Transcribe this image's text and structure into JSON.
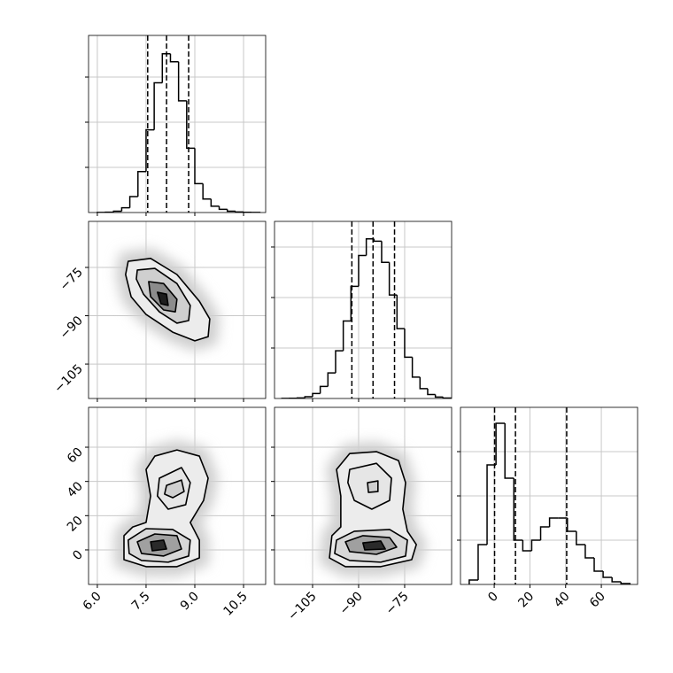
{
  "chart_data": [
    {
      "type": "histogram",
      "color": "#000000",
      "grid": true,
      "show_xticklabels": false,
      "show_yticklabels": false,
      "bins": [
        6,
        6.25,
        6.5,
        6.75,
        7,
        7.25,
        7.5,
        7.75,
        8,
        8.25,
        8.5,
        8.75,
        9,
        9.25,
        9.5,
        9.75,
        10,
        10.25,
        10.5,
        10.75,
        11
      ],
      "values": [
        1,
        4,
        15,
        53,
        176,
        454,
        916,
        1437,
        1758,
        1669,
        1237,
        712,
        320,
        150,
        70,
        35,
        15,
        6,
        2,
        1
      ],
      "quantiles": [
        7.55,
        8.13,
        8.81
      ],
      "xlim": [
        5.73,
        11.18
      ],
      "ylim": [
        0,
        1961
      ],
      "xticks": [
        6,
        7.5,
        9,
        10.5
      ],
      "yticks": [
        500,
        1000,
        1500
      ]
    },
    {
      "type": "contour",
      "grid": true,
      "show_xticklabels": false,
      "show_yticklabels": true,
      "xlim": [
        5.73,
        11.18
      ],
      "ylim": [
        -115.7,
        -60.7
      ],
      "xticks": [
        6,
        7.5,
        9,
        10.5
      ],
      "yticks": [
        {
          "value": -75,
          "label": "−75"
        },
        {
          "value": -90,
          "label": "−90"
        },
        {
          "value": -105,
          "label": "−105"
        }
      ],
      "contours": [
        {
          "fill": "#ececec",
          "x": [
            6.95,
            7.64,
            8.45,
            9.14,
            9.46,
            9.41,
            9.0,
            8.32,
            7.5,
            7.04,
            6.87
          ],
          "y": [
            -73.1,
            -72.2,
            -77.2,
            -85.5,
            -91.0,
            -96.5,
            -97.8,
            -95.1,
            -89.6,
            -84.1,
            -77.2
          ]
        },
        {
          "fill": "#cfcfcf",
          "x": [
            7.23,
            7.77,
            8.45,
            8.86,
            8.81,
            8.45,
            7.91,
            7.42,
            7.2
          ],
          "y": [
            -75.8,
            -75.3,
            -80.0,
            -86.8,
            -91.5,
            -92.3,
            -88.8,
            -83.3,
            -78.6
          ]
        },
        {
          "fill": "#8c8c8c",
          "x": [
            7.58,
            8.04,
            8.45,
            8.4,
            8.04,
            7.64
          ],
          "y": [
            -79.4,
            -80.0,
            -84.9,
            -88.8,
            -88.2,
            -84.1
          ]
        },
        {
          "fill": "#1e1e1e",
          "x": [
            7.85,
            8.13,
            8.18,
            7.96
          ],
          "y": [
            -82.7,
            -83.3,
            -86.8,
            -86.3
          ]
        }
      ]
    },
    {
      "type": "histogram",
      "color": "#000000",
      "grid": true,
      "show_xticklabels": false,
      "show_yticklabels": false,
      "bins": [
        -115,
        -112.5,
        -110,
        -107.5,
        -105,
        -102.5,
        -100,
        -97.5,
        -95,
        -92.5,
        -90,
        -87.5,
        -85,
        -82.5,
        -80,
        -77.5,
        -75,
        -72.5,
        -70,
        -67.5,
        -65,
        -62.5,
        -60
      ],
      "values": [
        1,
        2,
        6,
        18,
        49,
        119,
        253,
        473,
        767,
        1111,
        1416,
        1581,
        1558,
        1348,
        1025,
        692,
        409,
        212,
        98,
        40,
        14,
        4
      ],
      "quantiles": [
        -92.2,
        -85.3,
        -78.3
      ],
      "xlim": [
        -117.4,
        -59.7
      ],
      "ylim": [
        0,
        1754
      ],
      "xticks": [
        -105,
        -90,
        -75
      ],
      "yticks": [
        500,
        1000,
        1500
      ]
    },
    {
      "type": "contour",
      "grid": true,
      "show_xticklabels": true,
      "show_yticklabels": true,
      "xlim": [
        5.73,
        11.18
      ],
      "ylim": [
        -20.2,
        83.3
      ],
      "xticks": [
        {
          "value": 6,
          "label": "6.0"
        },
        {
          "value": 7.5,
          "label": "7.5"
        },
        {
          "value": 9,
          "label": "9.0"
        },
        {
          "value": 10.5,
          "label": "10.5"
        }
      ],
      "yticks": [
        60,
        40,
        20,
        0
      ],
      "contours": [
        {
          "fill": "#ececec",
          "x": [
            6.82,
            7.09,
            7.5,
            7.64,
            7.5,
            7.77,
            8.45,
            9.14,
            9.41,
            9.27,
            8.86,
            9.14,
            9.14,
            8.45,
            7.5,
            6.82
          ],
          "y": [
            8.3,
            13.4,
            16.0,
            31.5,
            47.0,
            54.8,
            58.4,
            54.8,
            41.9,
            28.9,
            16.0,
            5.7,
            -4.7,
            -9.8,
            -9.8,
            -5.7
          ]
        },
        {
          "fill": "#d8d8d8",
          "x": [
            6.95,
            7.5,
            8.32,
            8.86,
            8.81,
            8.18,
            7.36,
            6.98
          ],
          "y": [
            5.7,
            12.4,
            11.9,
            5.7,
            -3.6,
            -7.2,
            -6.2,
            -2.1
          ]
        },
        {
          "fill": "#a0a0a0",
          "x": [
            7.23,
            7.77,
            8.45,
            8.59,
            8.04,
            7.36
          ],
          "y": [
            4.7,
            9.3,
            8.3,
            0.5,
            -3.6,
            -2.1
          ]
        },
        {
          "fill": "#e6e6e6",
          "x": [
            7.91,
            8.59,
            8.86,
            8.72,
            8.18,
            7.85
          ],
          "y": [
            41.9,
            48.1,
            39.3,
            26.4,
            23.8,
            31.5
          ]
        },
        {
          "fill": "#d0d0d0",
          "x": [
            8.13,
            8.59,
            8.67,
            8.32,
            8.07
          ],
          "y": [
            37.7,
            40.8,
            34.1,
            30.5,
            32.6
          ]
        },
        {
          "fill": "#2a2a2a",
          "x": [
            7.64,
            8.04,
            8.13,
            7.69
          ],
          "y": [
            4.7,
            5.7,
            0.5,
            -0.5
          ]
        }
      ]
    },
    {
      "type": "contour",
      "grid": true,
      "show_xticklabels": true,
      "show_yticklabels": false,
      "xlim": [
        -117.4,
        -59.7
      ],
      "ylim": [
        -20.2,
        83.3
      ],
      "xticks": [
        {
          "value": -105,
          "label": "−105"
        },
        {
          "value": -90,
          "label": "−90"
        },
        {
          "value": -75,
          "label": "−75"
        }
      ],
      "yticks": [
        60,
        40,
        20,
        0
      ],
      "contours": [
        {
          "fill": "#ececec",
          "x": [
            -98.7,
            -95.8,
            -95.8,
            -97.2,
            -92.9,
            -84.2,
            -77.0,
            -74.7,
            -75.6,
            -74.1,
            -71.2,
            -72.7,
            -82.8,
            -94.3,
            -99.5
          ],
          "y": [
            8.3,
            13.4,
            31.5,
            47.0,
            56.3,
            57.4,
            52.2,
            39.3,
            23.8,
            10.9,
            3.1,
            -5.7,
            -9.8,
            -9.8,
            -4.7
          ]
        },
        {
          "fill": "#e6e6e6",
          "x": [
            -92.9,
            -84.2,
            -79.3,
            -79.9,
            -85.7,
            -91.4,
            -93.5
          ],
          "y": [
            47.0,
            50.6,
            41.9,
            28.9,
            23.8,
            28.9,
            39.3
          ]
        },
        {
          "fill": "#d8d8d8",
          "x": [
            -97.2,
            -91.4,
            -79.9,
            -74.1,
            -74.7,
            -82.8,
            -92.9,
            -97.8
          ],
          "y": [
            5.7,
            10.9,
            11.9,
            5.7,
            -3.6,
            -7.2,
            -6.2,
            -2.1
          ]
        },
        {
          "fill": "#a0a0a0",
          "x": [
            -94.3,
            -88.6,
            -79.9,
            -77.6,
            -84.2,
            -92.9
          ],
          "y": [
            4.7,
            8.3,
            7.2,
            1.6,
            -2.6,
            -1.0
          ]
        },
        {
          "fill": "#2a2a2a",
          "x": [
            -88.6,
            -82.8,
            -81.3,
            -88.0
          ],
          "y": [
            4.1,
            5.2,
            0.5,
            0
          ]
        },
        {
          "fill": "#d0d0d0",
          "x": [
            -87.1,
            -83.7,
            -83.7,
            -86.8
          ],
          "y": [
            39.3,
            40.3,
            34.1,
            33.6
          ]
        }
      ]
    },
    {
      "type": "histogram",
      "color": "#000000",
      "grid": true,
      "show_xticklabels": true,
      "show_yticklabels": false,
      "bins": [
        -14,
        -9,
        -4,
        1,
        6,
        11,
        16,
        21,
        26,
        31,
        36,
        41,
        46,
        51,
        56,
        61,
        66,
        71,
        76
      ],
      "values": [
        50,
        450,
        1350,
        1820,
        1200,
        500,
        380,
        500,
        650,
        750,
        750,
        600,
        450,
        300,
        150,
        80,
        30,
        10
      ],
      "quantiles": [
        0.2,
        11.9,
        40.6
      ],
      "xlim": [
        -18.9,
        80.3
      ],
      "ylim": [
        0,
        2000
      ],
      "xticks": [
        0,
        20,
        40,
        60
      ],
      "yticks": [
        500,
        1000,
        1500
      ]
    }
  ]
}
